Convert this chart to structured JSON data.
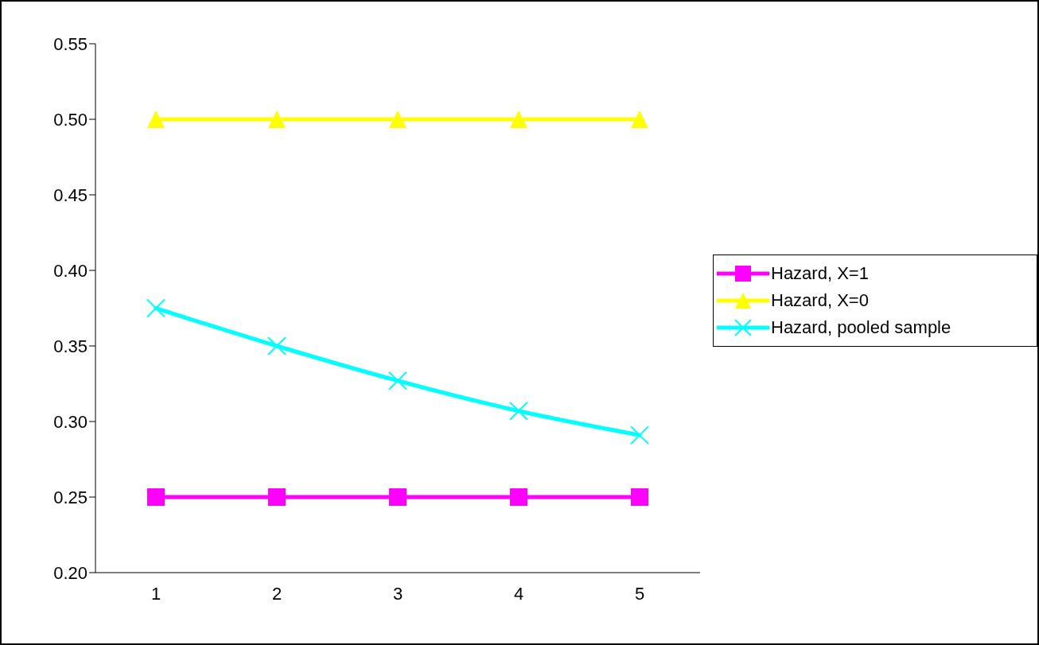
{
  "chart_data": {
    "type": "line",
    "categories": [
      "1",
      "2",
      "3",
      "4",
      "5"
    ],
    "series": [
      {
        "name": "Hazard, X=1",
        "color": "#ff00ff",
        "marker": "square",
        "values": [
          0.25,
          0.25,
          0.25,
          0.25,
          0.25
        ]
      },
      {
        "name": "Hazard, X=0",
        "color": "#ffff00",
        "marker": "triangle",
        "values": [
          0.5,
          0.5,
          0.5,
          0.5,
          0.5
        ]
      },
      {
        "name": "Hazard, pooled sample",
        "color": "#00ffff",
        "marker": "cross",
        "values": [
          0.375,
          0.35,
          0.327,
          0.307,
          0.291
        ]
      }
    ],
    "ylim": [
      0.2,
      0.55
    ],
    "yticks": [
      {
        "value": 0.2,
        "label": "0.20"
      },
      {
        "value": 0.25,
        "label": "0.25"
      },
      {
        "value": 0.3,
        "label": "0.30"
      },
      {
        "value": 0.35,
        "label": "0.35"
      },
      {
        "value": 0.4,
        "label": "0.40"
      },
      {
        "value": 0.45,
        "label": "0.45"
      },
      {
        "value": 0.5,
        "label": "0.50"
      },
      {
        "value": 0.55,
        "label": "0.55"
      }
    ],
    "grid": false,
    "legend": "right",
    "line_style": "solid"
  }
}
